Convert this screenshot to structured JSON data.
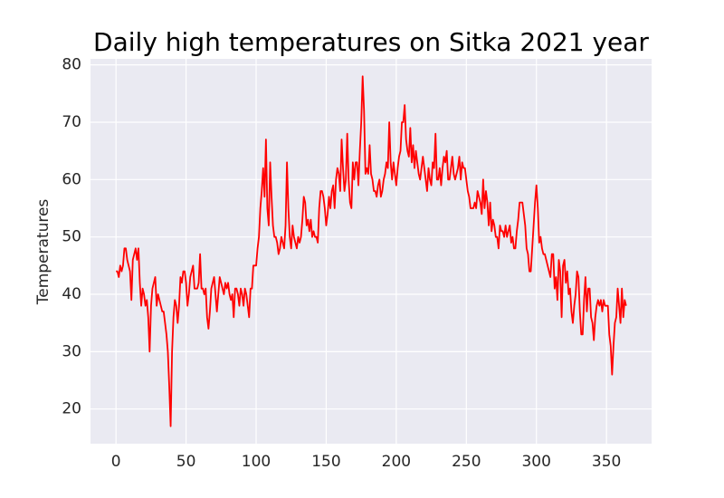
{
  "chart_data": {
    "type": "line",
    "title": "Daily high temperatures on Sitka 2021 year",
    "ylabel": "Temperatures",
    "xlim": [
      -18.2,
      382.2
    ],
    "ylim": [
      13.95,
      81.05
    ],
    "xticks": [
      0,
      50,
      100,
      150,
      200,
      250,
      300,
      350
    ],
    "yticks": [
      20,
      30,
      40,
      50,
      60,
      70,
      80
    ],
    "grid": true,
    "series": [
      {
        "color": "#ff0000",
        "x": [
          0,
          1,
          2,
          3,
          4,
          5,
          6,
          7,
          8,
          9,
          10,
          11,
          12,
          13,
          14,
          15,
          16,
          17,
          18,
          19,
          20,
          21,
          22,
          23,
          24,
          25,
          26,
          27,
          28,
          29,
          30,
          31,
          32,
          33,
          34,
          35,
          36,
          37,
          38,
          39,
          40,
          41,
          42,
          43,
          44,
          45,
          46,
          47,
          48,
          49,
          50,
          51,
          52,
          53,
          54,
          55,
          56,
          57,
          58,
          59,
          60,
          61,
          62,
          63,
          64,
          65,
          66,
          67,
          68,
          69,
          70,
          71,
          72,
          73,
          74,
          75,
          76,
          77,
          78,
          79,
          80,
          81,
          82,
          83,
          84,
          85,
          86,
          87,
          88,
          89,
          90,
          91,
          92,
          93,
          94,
          95,
          96,
          97,
          98,
          99,
          100,
          101,
          102,
          103,
          104,
          105,
          106,
          107,
          108,
          109,
          110,
          111,
          112,
          113,
          114,
          115,
          116,
          117,
          118,
          119,
          120,
          121,
          122,
          123,
          124,
          125,
          126,
          127,
          128,
          129,
          130,
          131,
          132,
          133,
          134,
          135,
          136,
          137,
          138,
          139,
          140,
          141,
          142,
          143,
          144,
          145,
          146,
          147,
          148,
          149,
          150,
          151,
          152,
          153,
          154,
          155,
          156,
          157,
          158,
          159,
          160,
          161,
          162,
          163,
          164,
          165,
          166,
          167,
          168,
          169,
          170,
          171,
          172,
          173,
          174,
          175,
          176,
          177,
          178,
          179,
          180,
          181,
          182,
          183,
          184,
          185,
          186,
          187,
          188,
          189,
          190,
          191,
          192,
          193,
          194,
          195,
          196,
          197,
          198,
          199,
          200,
          201,
          202,
          203,
          204,
          205,
          206,
          207,
          208,
          209,
          210,
          211,
          212,
          213,
          214,
          215,
          216,
          217,
          218,
          219,
          220,
          221,
          222,
          223,
          224,
          225,
          226,
          227,
          228,
          229,
          230,
          231,
          232,
          233,
          234,
          235,
          236,
          237,
          238,
          239,
          240,
          241,
          242,
          243,
          244,
          245,
          246,
          247,
          248,
          249,
          250,
          251,
          252,
          253,
          254,
          255,
          256,
          257,
          258,
          259,
          260,
          261,
          262,
          263,
          264,
          265,
          266,
          267,
          268,
          269,
          270,
          271,
          272,
          273,
          274,
          275,
          276,
          277,
          278,
          279,
          280,
          281,
          282,
          283,
          284,
          285,
          286,
          287,
          288,
          289,
          290,
          291,
          292,
          293,
          294,
          295,
          296,
          297,
          298,
          299,
          300,
          301,
          302,
          303,
          304,
          305,
          306,
          307,
          308,
          309,
          310,
          311,
          312,
          313,
          314,
          315,
          316,
          317,
          318,
          319,
          320,
          321,
          322,
          323,
          324,
          325,
          326,
          327,
          328,
          329,
          330,
          331,
          332,
          333,
          334,
          335,
          336,
          337,
          338,
          339,
          340,
          341,
          342,
          343,
          344,
          345,
          346,
          347,
          348,
          349,
          350,
          351,
          352,
          353,
          354,
          355,
          356,
          357,
          358,
          359,
          360,
          361,
          362,
          363,
          364
        ],
        "values": [
          44,
          44,
          43,
          45,
          44,
          45,
          48,
          48,
          46,
          45,
          44,
          39,
          46,
          47,
          48,
          46,
          48,
          42,
          38,
          41,
          40,
          38,
          39,
          36,
          30,
          38,
          41,
          42,
          43,
          38,
          40,
          39,
          38,
          37,
          37,
          35,
          33,
          30,
          24,
          17,
          30,
          36,
          39,
          38,
          35,
          38,
          43,
          42,
          44,
          44,
          42,
          38,
          40,
          43,
          44,
          45,
          41,
          41,
          41,
          42,
          47,
          41,
          41,
          40,
          41,
          36,
          34,
          37,
          41,
          42,
          43,
          40,
          37,
          40,
          43,
          42,
          41,
          40,
          42,
          41,
          42,
          40,
          39,
          40,
          36,
          41,
          41,
          40,
          38,
          41,
          40,
          38,
          41,
          40,
          38,
          36,
          41,
          41,
          45,
          45,
          45,
          48,
          50,
          55,
          58,
          62,
          57,
          67,
          55,
          52,
          63,
          57,
          52,
          50,
          50,
          49,
          47,
          48,
          50,
          49,
          48,
          52,
          63,
          55,
          50,
          48,
          52,
          50,
          49,
          48,
          50,
          49,
          50,
          53,
          57,
          56,
          52,
          53,
          51,
          53,
          50,
          51,
          50,
          50,
          49,
          55,
          58,
          58,
          57,
          55,
          52,
          54,
          57,
          55,
          58,
          59,
          55,
          60,
          62,
          61,
          58,
          67,
          62,
          58,
          60,
          68,
          60,
          56,
          55,
          63,
          60,
          63,
          63,
          59,
          65,
          70,
          78,
          72,
          61,
          62,
          61,
          66,
          61,
          60,
          58,
          58,
          57,
          59,
          60,
          57,
          58,
          60,
          61,
          63,
          62,
          70,
          63,
          60,
          63,
          61,
          59,
          62,
          64,
          65,
          70,
          70,
          73,
          67,
          65,
          64,
          69,
          63,
          66,
          62,
          65,
          63,
          61,
          60,
          62,
          64,
          62,
          60,
          58,
          62,
          60,
          59,
          63,
          62,
          68,
          60,
          60,
          62,
          59,
          62,
          64,
          63,
          65,
          60,
          60,
          62,
          64,
          61,
          60,
          61,
          62,
          64,
          60,
          63,
          62,
          62,
          60,
          58,
          57,
          55,
          55,
          55,
          56,
          55,
          58,
          57,
          56,
          54,
          60,
          55,
          58,
          56,
          52,
          56,
          51,
          53,
          52,
          50,
          50,
          48,
          52,
          51,
          51,
          50,
          52,
          50,
          51,
          52,
          49,
          50,
          48,
          48,
          51,
          53,
          56,
          56,
          56,
          54,
          52,
          48,
          47,
          44,
          44,
          48,
          52,
          56,
          59,
          55,
          49,
          50,
          48,
          47,
          47,
          46,
          45,
          44,
          43,
          47,
          47,
          41,
          43,
          39,
          46,
          44,
          36,
          45,
          46,
          42,
          44,
          40,
          41,
          37,
          35,
          38,
          40,
          44,
          43,
          37,
          33,
          33,
          39,
          43,
          37,
          41,
          41,
          36,
          35,
          32,
          36,
          38,
          39,
          38,
          39,
          37,
          39,
          38,
          38,
          38,
          33,
          31,
          26,
          31,
          35,
          36,
          41,
          38,
          35,
          41,
          36,
          39,
          38
        ]
      }
    ]
  }
}
